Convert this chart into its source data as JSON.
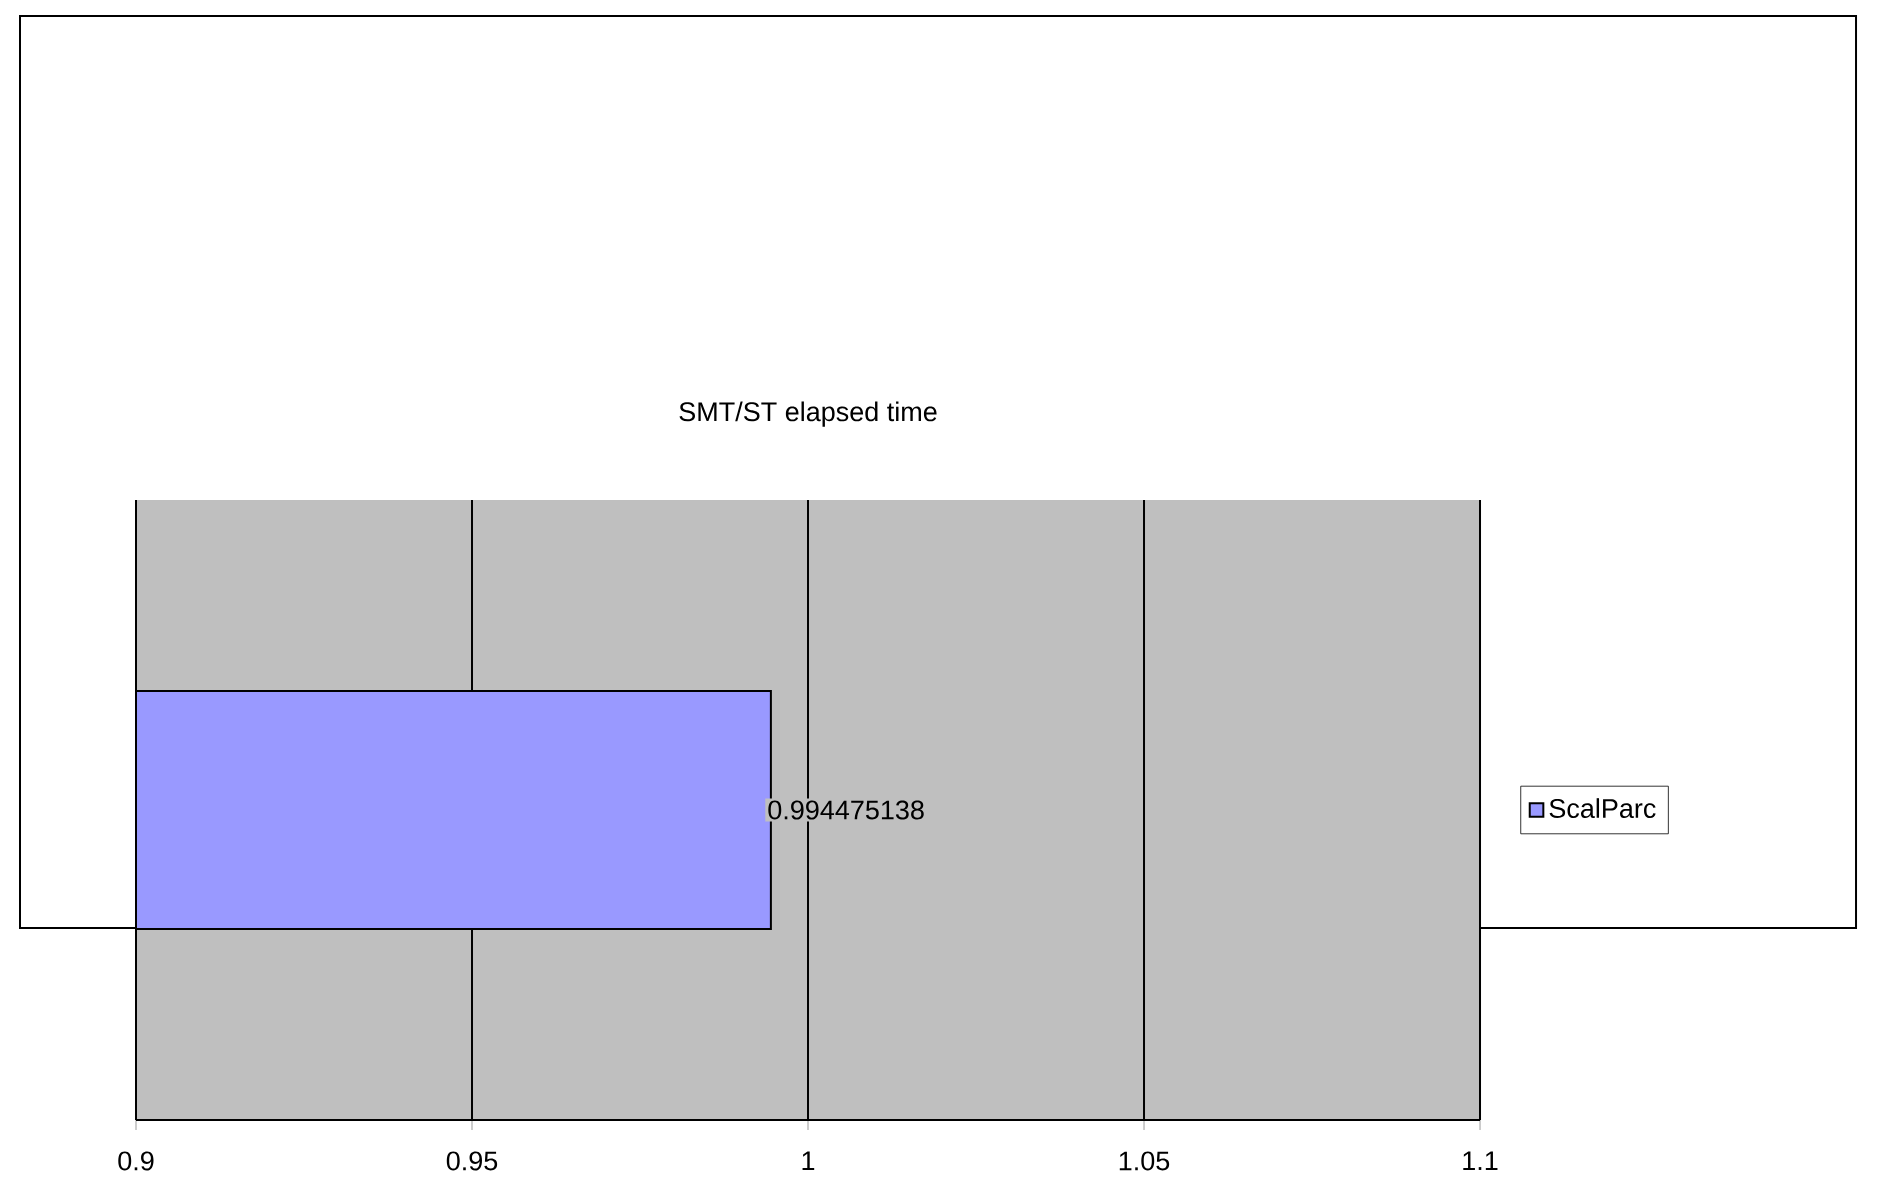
{
  "chart_data": {
    "type": "bar",
    "orientation": "horizontal",
    "title": "SMT/ST elapsed time",
    "categories": [
      null
    ],
    "series": [
      {
        "name": "ScalParc",
        "color": "#9999ff",
        "values": [
          0.994475138
        ],
        "value_labels": [
          "0.994475138"
        ]
      }
    ],
    "xlim": [
      0.9,
      1.1
    ],
    "xticks": [
      0.9,
      0.95,
      1,
      1.05,
      1.1
    ],
    "grid": "x",
    "legend": "right"
  }
}
